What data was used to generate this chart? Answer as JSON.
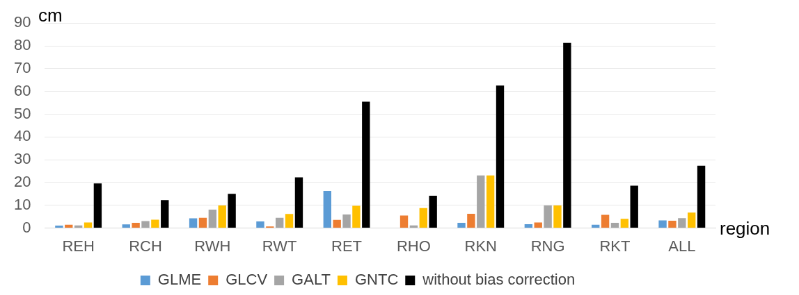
{
  "chart_data": {
    "type": "bar",
    "xlabel": "region",
    "ylabel": "cm",
    "categories": [
      "REH",
      "RCH",
      "RWH",
      "RWT",
      "RET",
      "RHO",
      "RKN",
      "RNG",
      "RKT",
      "ALL"
    ],
    "series": [
      {
        "name": "GLME",
        "color": "#5b9bd5",
        "values": [
          1.1,
          1.6,
          4.3,
          2.9,
          16.3,
          null,
          2.3,
          1.7,
          1.5,
          3.4
        ]
      },
      {
        "name": "GLCV",
        "color": "#ed7d31",
        "values": [
          1.5,
          2.3,
          4.5,
          0.7,
          3.6,
          5.5,
          6.3,
          2.5,
          5.8,
          3.2
        ]
      },
      {
        "name": "GALT",
        "color": "#a5a5a5",
        "values": [
          1.2,
          3.1,
          8.1,
          4.5,
          6.0,
          1.2,
          23.1,
          9.9,
          2.3,
          4.4
        ]
      },
      {
        "name": "GNTC",
        "color": "#ffc000",
        "values": [
          2.5,
          3.7,
          9.9,
          6.2,
          9.8,
          8.8,
          23.1,
          9.9,
          4.1,
          6.8
        ]
      },
      {
        "name": "without bias correction",
        "color": "#000000",
        "values": [
          19.6,
          12.3,
          15.0,
          22.3,
          55.5,
          14.2,
          62.6,
          81.3,
          18.6,
          27.4
        ]
      }
    ],
    "ylim": [
      0,
      90
    ],
    "yticks": [
      0,
      10,
      20,
      30,
      40,
      50,
      60,
      70,
      80,
      90
    ],
    "grid": "y",
    "legend": "bottom"
  }
}
